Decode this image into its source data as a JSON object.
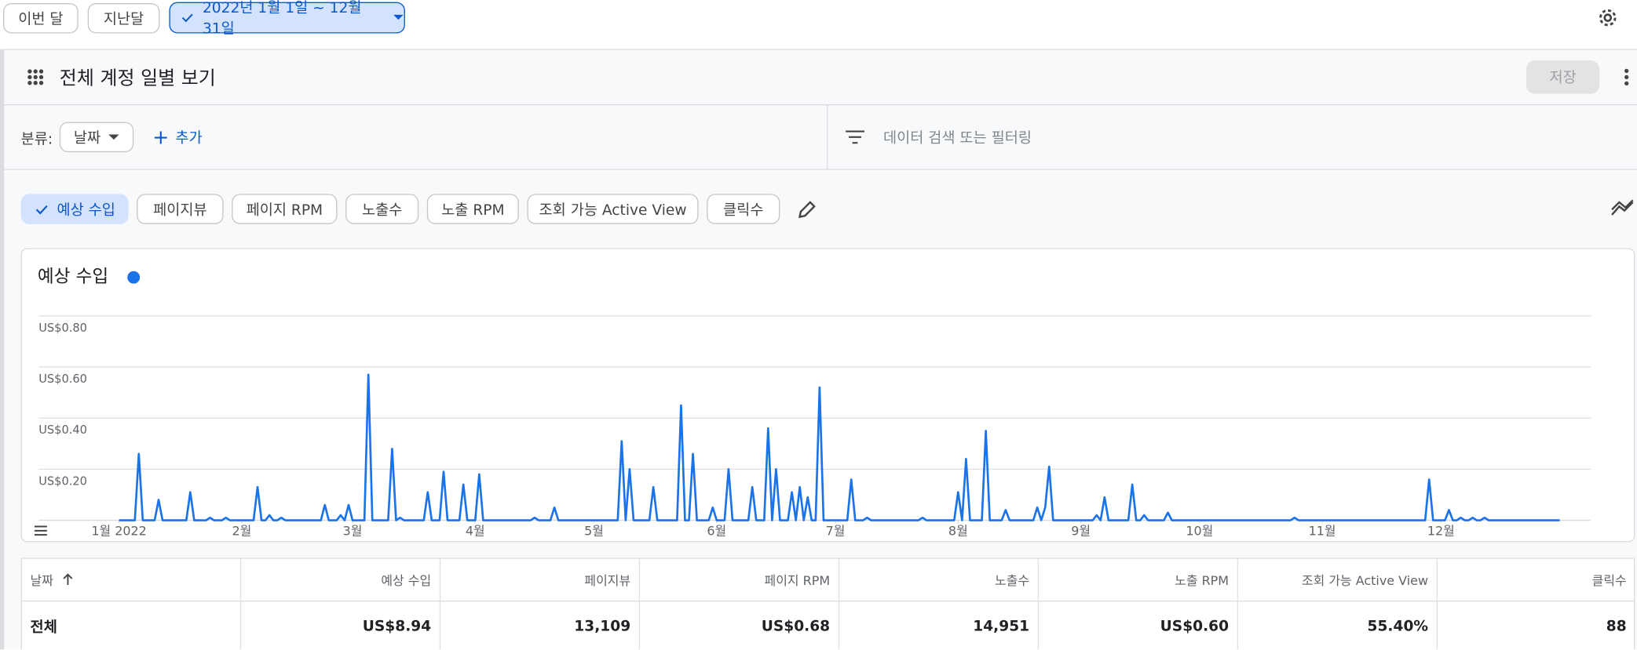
{
  "top_bar": {
    "buttons": [
      "이번 달",
      "지난달"
    ],
    "date_range": "2022년 1월 1일 ~ 12월 31일"
  },
  "report": {
    "title": "전체 계정 일별 보기",
    "save": "저장"
  },
  "breakdown": {
    "label": "분류:",
    "dimension": "날짜",
    "add": "추가",
    "search_placeholder": "데이터 검색 또는 필터링"
  },
  "metric_chips": [
    "예상 수입",
    "페이지뷰",
    "페이지 RPM",
    "노출수",
    "노출 RPM",
    "조회 가능 Active View",
    "클릭수"
  ],
  "chart_data": {
    "type": "line",
    "title": "예상 수입",
    "x": [
      1,
      5,
      6,
      7,
      10,
      11,
      12,
      18,
      19,
      20,
      23,
      24,
      25,
      27,
      28,
      29,
      35,
      36,
      37,
      38,
      39,
      40,
      41,
      42,
      43,
      52,
      53,
      54,
      56,
      57,
      58,
      59,
      60,
      63,
      64,
      65,
      69,
      70,
      71,
      72,
      73,
      78,
      79,
      80,
      82,
      83,
      84,
      87,
      88,
      89,
      91,
      92,
      93,
      105,
      106,
      107,
      110,
      111,
      112,
      127,
      128,
      129,
      130,
      131,
      135,
      136,
      137,
      142,
      143,
      144,
      145,
      146,
      147,
      150,
      151,
      152,
      154,
      155,
      156,
      160,
      161,
      162,
      164,
      165,
      166,
      167,
      168,
      170,
      171,
      172,
      173,
      174,
      175,
      176,
      177,
      178,
      179,
      185,
      186,
      187,
      189,
      190,
      191,
      203,
      204,
      205,
      212,
      213,
      214,
      215,
      216,
      219,
      220,
      221,
      224,
      225,
      226,
      232,
      233,
      234,
      235,
      236,
      237,
      247,
      248,
      249,
      250,
      251,
      256,
      257,
      258,
      259,
      260,
      261,
      265,
      266,
      267,
      297,
      298,
      299,
      331,
      332,
      333,
      336,
      337,
      338,
      339,
      340,
      341,
      342,
      343,
      344,
      345,
      346,
      347,
      365
    ],
    "series": [
      {
        "color": "#1a73e8",
        "values": [
          0,
          0,
          0.26,
          0,
          0,
          0.08,
          0,
          0,
          0.11,
          0,
          0,
          0.01,
          0,
          0,
          0.01,
          0,
          0,
          0.13,
          0,
          0,
          0.02,
          0,
          0,
          0.01,
          0,
          0,
          0.06,
          0,
          0,
          0.02,
          0,
          0.06,
          0,
          0,
          0.57,
          0,
          0,
          0.28,
          0,
          0.01,
          0,
          0,
          0.11,
          0,
          0,
          0.19,
          0,
          0,
          0.14,
          0,
          0,
          0.18,
          0,
          0,
          0.01,
          0,
          0,
          0.05,
          0,
          0,
          0.31,
          0,
          0.2,
          0,
          0,
          0.13,
          0,
          0,
          0.45,
          0,
          0,
          0.26,
          0,
          0,
          0.05,
          0,
          0,
          0.2,
          0,
          0,
          0.13,
          0,
          0,
          0.36,
          0,
          0.2,
          0,
          0,
          0.11,
          0,
          0.13,
          0,
          0.09,
          0,
          0,
          0.52,
          0,
          0,
          0.16,
          0,
          0,
          0.01,
          0,
          0,
          0.01,
          0,
          0,
          0.11,
          0,
          0.24,
          0,
          0,
          0.35,
          0,
          0,
          0.04,
          0,
          0,
          0.05,
          0,
          0.05,
          0.21,
          0,
          0,
          0.02,
          0,
          0.09,
          0,
          0,
          0.14,
          0,
          0,
          0.02,
          0,
          0,
          0.03,
          0,
          0,
          0.01,
          0,
          0,
          0.16,
          0,
          0,
          0.04,
          0,
          0,
          0.01,
          0,
          0,
          0.01,
          0,
          0,
          0.01,
          0,
          0
        ]
      }
    ],
    "xlim": [
      1,
      365
    ],
    "xticks": [
      {
        "value": 1,
        "label": "1월 2022"
      },
      {
        "value": 32,
        "label": "2월"
      },
      {
        "value": 60,
        "label": "3월"
      },
      {
        "value": 91,
        "label": "4월"
      },
      {
        "value": 121,
        "label": "5월"
      },
      {
        "value": 152,
        "label": "6월"
      },
      {
        "value": 182,
        "label": "7월"
      },
      {
        "value": 213,
        "label": "8월"
      },
      {
        "value": 244,
        "label": "9월"
      },
      {
        "value": 274,
        "label": "10월"
      },
      {
        "value": 305,
        "label": "11월"
      },
      {
        "value": 335,
        "label": "12월"
      }
    ],
    "ylim": [
      0,
      0.8
    ],
    "yticks": [
      {
        "value": 0.2,
        "label": "US$0.20"
      },
      {
        "value": 0.4,
        "label": "US$0.40"
      },
      {
        "value": 0.6,
        "label": "US$0.60"
      },
      {
        "value": 0.8,
        "label": "US$0.80"
      }
    ],
    "grid": true
  },
  "table": {
    "columns": [
      "날짜",
      "예상 수입",
      "페이지뷰",
      "페이지 RPM",
      "노출수",
      "노출 RPM",
      "조회 가능 Active View",
      "클릭수"
    ],
    "rows": [
      [
        "전체",
        "US$8.94",
        "13,109",
        "US$0.68",
        "14,951",
        "US$0.60",
        "55.40%",
        "88"
      ]
    ]
  }
}
